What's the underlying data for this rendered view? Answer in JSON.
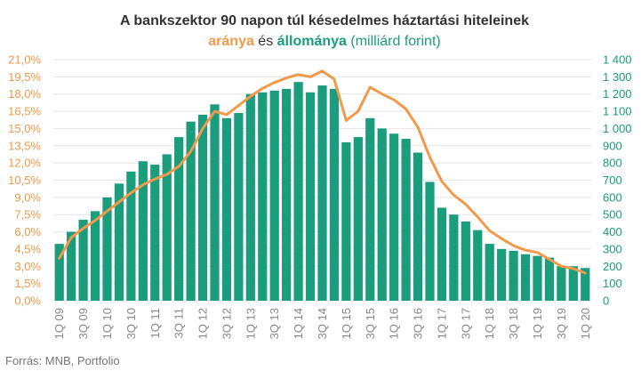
{
  "chart_data": {
    "type": "bar+line",
    "title": "A bankszektor 90 napon túl késedelmes háztartási hiteleinek",
    "subtitle_parts": [
      "aránya",
      " és ",
      "állománya",
      " (milliárd forint)"
    ],
    "source": "Forrás: MNB, Portfolio",
    "colors": {
      "bar": "#1a9d7c",
      "line": "#f2994a",
      "grid": "#e4e4e4",
      "title": "#333333"
    },
    "grid": true,
    "categories": [
      "1Q 09",
      "2Q 09",
      "3Q 09",
      "4Q 09",
      "1Q 10",
      "2Q 10",
      "3Q 10",
      "4Q 10",
      "1Q 11",
      "2Q 11",
      "3Q 11",
      "4Q 11",
      "1Q 12",
      "2Q 12",
      "3Q 12",
      "4Q 12",
      "1Q 13",
      "2Q 13",
      "3Q 13",
      "4Q 13",
      "1Q 14",
      "2Q 14",
      "3Q 14",
      "4Q 14",
      "1Q 15",
      "2Q 15",
      "3Q 15",
      "4Q 15",
      "1Q 16",
      "2Q 16",
      "3Q 16",
      "4Q 16",
      "1Q 17",
      "2Q 17",
      "3Q 17",
      "4Q 17",
      "1Q 18",
      "2Q 18",
      "3Q 18",
      "4Q 18",
      "1Q 19",
      "2Q 19",
      "3Q 19",
      "4Q 19",
      "1Q 20"
    ],
    "x_tick_labels": [
      "1Q 09",
      "3Q 09",
      "1Q 10",
      "3Q 10",
      "1Q 11",
      "3Q 11",
      "1Q 12",
      "3Q 12",
      "1Q 13",
      "3Q 13",
      "1Q 14",
      "3Q 14",
      "1Q 15",
      "3Q 15",
      "1Q 16",
      "3Q 16",
      "1Q 17",
      "3Q 17",
      "1Q 18",
      "3Q 18",
      "1Q 19",
      "3Q 19",
      "1Q 20"
    ],
    "left_axis": {
      "ylim": [
        0,
        21
      ],
      "ticks": [
        "0,0%",
        "1,5%",
        "3,0%",
        "4,5%",
        "6,0%",
        "7,5%",
        "9,0%",
        "10,5%",
        "12,0%",
        "13,5%",
        "15,0%",
        "16,5%",
        "18,0%",
        "19,5%",
        "21,0%"
      ]
    },
    "right_axis": {
      "ylim": [
        0,
        1400
      ],
      "ticks": [
        "0",
        "100",
        "200",
        "300",
        "400",
        "500",
        "600",
        "700",
        "800",
        "900",
        "1 000",
        "1 100",
        "1 200",
        "1 300",
        "1 400"
      ]
    },
    "series": [
      {
        "name": "állománya",
        "kind": "bar",
        "axis": "right",
        "values": [
          330,
          400,
          470,
          520,
          600,
          680,
          750,
          810,
          790,
          850,
          950,
          1040,
          1080,
          1140,
          1060,
          1090,
          1200,
          1210,
          1220,
          1230,
          1270,
          1210,
          1250,
          1230,
          920,
          950,
          1060,
          1000,
          970,
          940,
          860,
          690,
          540,
          500,
          460,
          410,
          330,
          300,
          290,
          270,
          260,
          250,
          200,
          200,
          190
        ]
      },
      {
        "name": "aránya",
        "kind": "line",
        "axis": "left",
        "values": [
          3.7,
          5.5,
          6.3,
          7.0,
          7.8,
          8.6,
          9.4,
          10.1,
          10.6,
          11.0,
          11.7,
          13.0,
          15.0,
          16.5,
          16.2,
          17.0,
          17.8,
          18.5,
          19.0,
          19.4,
          19.7,
          19.5,
          20.0,
          19.3,
          15.7,
          16.5,
          18.6,
          18.0,
          17.5,
          16.7,
          15.1,
          12.5,
          10.4,
          9.2,
          8.4,
          7.3,
          6.1,
          5.4,
          4.8,
          4.4,
          4.2,
          3.6,
          3.0,
          2.8,
          2.4
        ]
      }
    ]
  }
}
